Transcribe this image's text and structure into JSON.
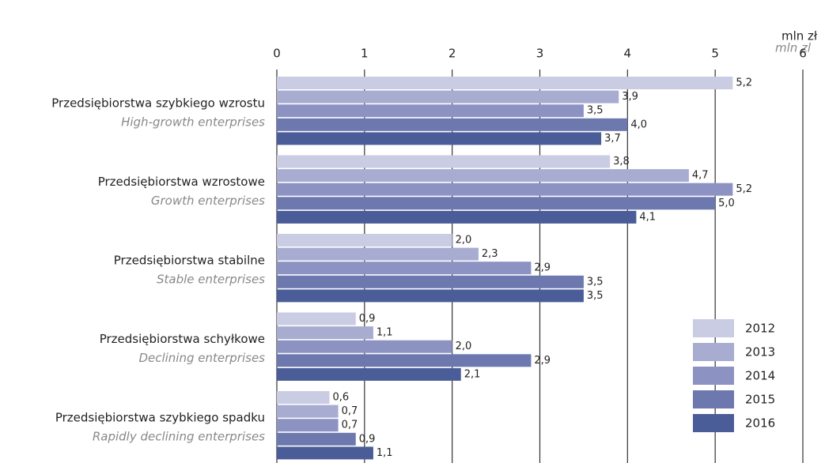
{
  "chart_data": {
    "type": "hbar",
    "unit_label": "mln zł",
    "unit_label_en": "mln zl",
    "categories": [
      "Przedsiębiorstwa szybkiego wzrostu",
      "Przedsiębiorstwa wzrostowe",
      "Przedsiębiorstwa stabilne",
      "Przedsiębiorstwa schyłkowe",
      "Przedsiębiorstwa szybkiego spadku"
    ],
    "categories_en": [
      "High-growth enterprises",
      "Growth enterprises",
      "Stable enterprises",
      "Declining enterprises",
      "Rapidly declining enterprises"
    ],
    "series": [
      {
        "name": "2012",
        "color": "#c9cce3",
        "values": [
          5.2,
          3.8,
          2.0,
          0.9,
          0.6
        ],
        "value_labels": [
          "5,2",
          "3,8",
          "2,0",
          "0,9",
          "0,6"
        ]
      },
      {
        "name": "2013",
        "color": "#a8acd1",
        "values": [
          3.9,
          4.7,
          2.3,
          1.1,
          0.7
        ],
        "value_labels": [
          "3,9",
          "4,7",
          "2,3",
          "1,1",
          "0,7"
        ]
      },
      {
        "name": "2014",
        "color": "#8c93c3",
        "values": [
          3.5,
          5.2,
          2.9,
          2.0,
          0.7
        ],
        "value_labels": [
          "3,5",
          "5,2",
          "2,9",
          "2,0",
          "0,7"
        ]
      },
      {
        "name": "2015",
        "color": "#6c78ae",
        "values": [
          4.0,
          5.0,
          3.5,
          2.9,
          0.9
        ],
        "value_labels": [
          "4,0",
          "5,0",
          "3,5",
          "2,9",
          "0,9"
        ]
      },
      {
        "name": "2016",
        "color": "#4a5d98",
        "values": [
          3.7,
          4.1,
          3.5,
          2.1,
          1.1
        ],
        "value_labels": [
          "3,7",
          "4,1",
          "3,5",
          "2,1",
          "1,1"
        ]
      }
    ],
    "xlim": [
      0,
      6
    ],
    "xticks": [
      0,
      1,
      2,
      3,
      4,
      5,
      6
    ],
    "grid": true,
    "legend": "lower right"
  }
}
